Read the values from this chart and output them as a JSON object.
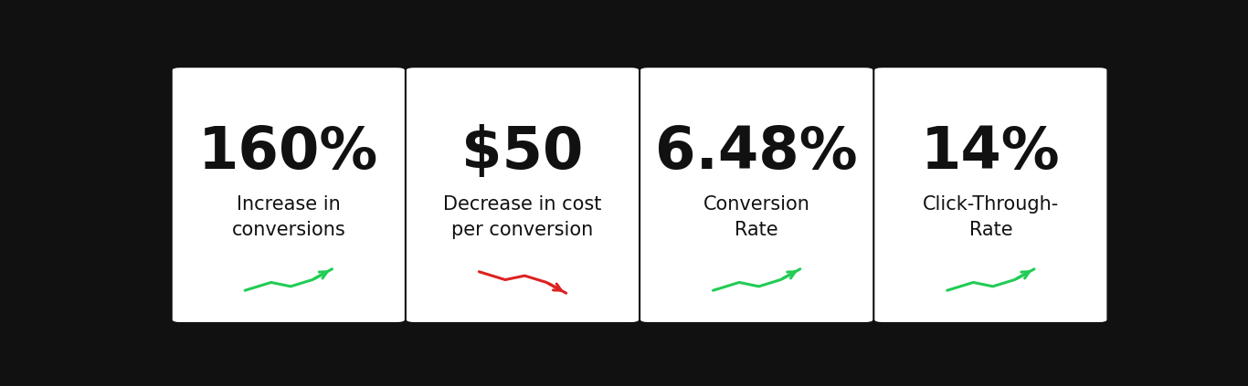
{
  "background_color": "#111111",
  "card_bg": "#ffffff",
  "cards": [
    {
      "value": "160%",
      "label": "Increase in\nconversions",
      "arrow": "up",
      "arrow_color": "#22cc55"
    },
    {
      "value": "$50",
      "label": "Decrease in cost\nper conversion",
      "arrow": "down",
      "arrow_color": "#dd2222"
    },
    {
      "value": "6.48%",
      "label": "Conversion\nRate",
      "arrow": "up",
      "arrow_color": "#22cc55"
    },
    {
      "value": "14%",
      "label": "Click-Through-\nRate",
      "arrow": "up",
      "arrow_color": "#22cc55"
    }
  ],
  "value_fontsize": 46,
  "label_fontsize": 15,
  "value_color": "#111111",
  "label_color": "#111111",
  "fig_width": 13.66,
  "fig_height": 4.23
}
